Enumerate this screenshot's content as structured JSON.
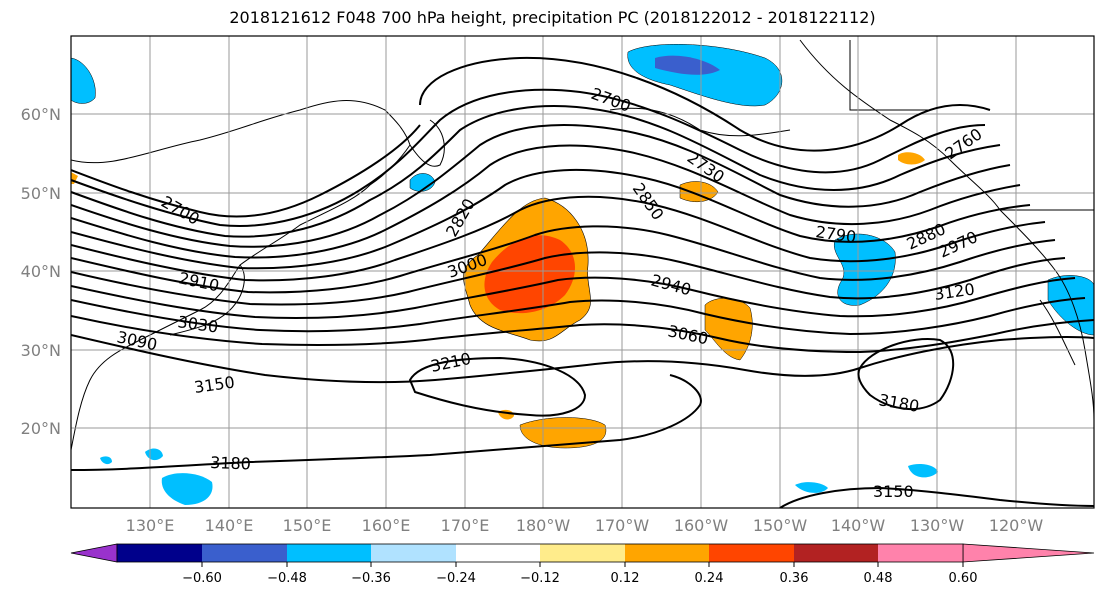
{
  "title": "2018121612 F048 700 hPa height, precipitation PC (2018122012 - 2018122112)",
  "lat_axis": [
    "60°N",
    "50°N",
    "40°N",
    "30°N",
    "20°N"
  ],
  "lon_axis": [
    "130°E",
    "140°E",
    "150°E",
    "160°E",
    "170°E",
    "180°W",
    "170°W",
    "160°W",
    "150°W",
    "140°W",
    "130°W",
    "120°W"
  ],
  "contour_labels": [
    "2700",
    "2700",
    "2730",
    "2760",
    "2790",
    "2820",
    "2850",
    "2880",
    "2910",
    "2940",
    "2970",
    "3000",
    "3030",
    "3060",
    "3090",
    "3120",
    "3150",
    "3150",
    "3180",
    "3180",
    "3210"
  ],
  "colorbar": {
    "ticks": [
      "−0.60",
      "−0.48",
      "−0.36",
      "−0.24",
      "−0.12",
      "0.12",
      "0.24",
      "0.36",
      "0.48",
      "0.60"
    ],
    "colors": [
      "#9932cc",
      "#00008b",
      "#3a5fcd",
      "#00bfff",
      "#b0e2ff",
      "#ffffff",
      "#ffec8b",
      "#ffa500",
      "#ff4500",
      "#b22222",
      "#ff82ab"
    ]
  },
  "colors": {
    "positive_main": "#ffa500",
    "positive_strong": "#ff4500",
    "negative_main": "#00bfff",
    "negative_strong": "#3a5fcd"
  }
}
